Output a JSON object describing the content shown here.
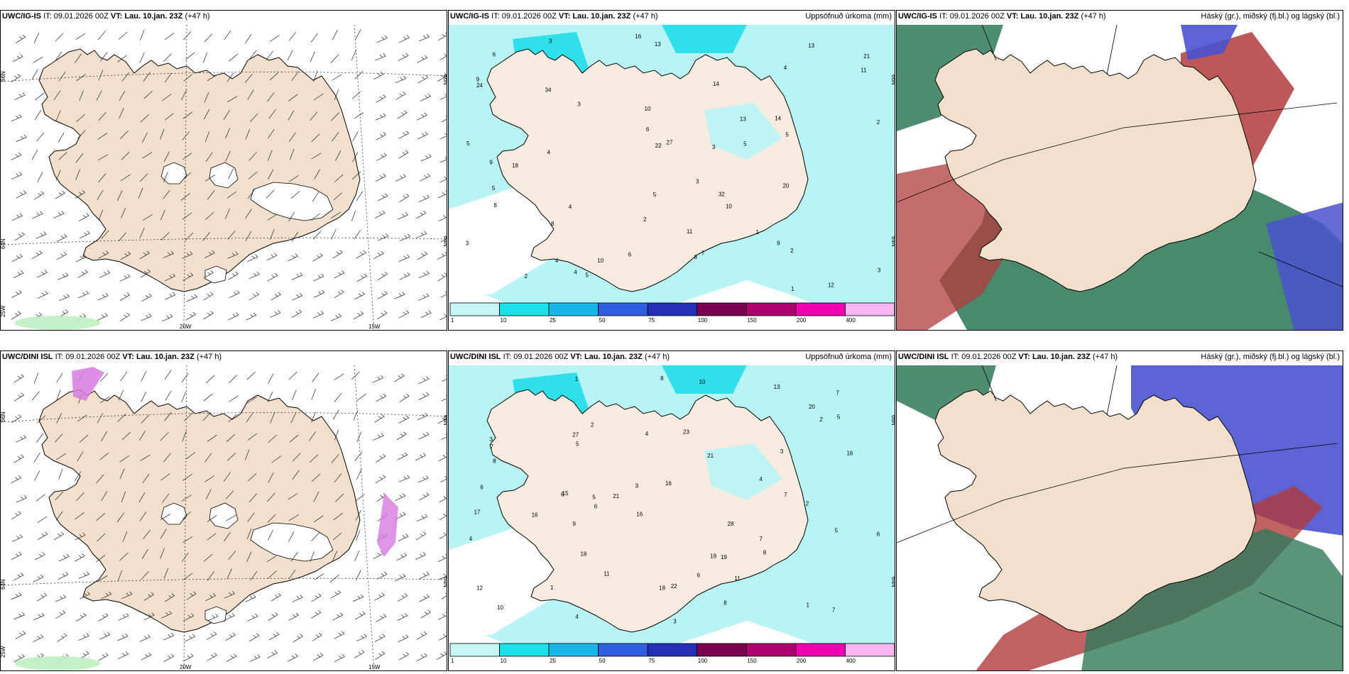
{
  "panels": [
    {
      "id": "p1",
      "model": "UWC/IG-IS",
      "it_label": "IT:",
      "it_value": "09.01.2026 00Z",
      "vt_label": "VT:",
      "vt_value": "Lau. 10.jan. 23Z",
      "lead": "(+47 h)",
      "title_right": "",
      "type": "wind",
      "lat_labels": [
        "66N",
        "64N",
        "66N",
        "64N"
      ],
      "lon_labels": [
        "25W",
        "20W",
        "15W"
      ]
    },
    {
      "id": "p2",
      "model": "UWC/IG-IS",
      "it_label": "IT:",
      "it_value": "09.01.2026 00Z",
      "vt_label": "VT:",
      "vt_value": "Lau. 10.jan. 23Z",
      "lead": "(+47 h)",
      "title_right": "Uppsöfnuð úrkoma (mm)",
      "type": "precip",
      "lat_labels": [
        "66N",
        "64N"
      ],
      "precip_labels": [
        "5",
        "13",
        "14",
        "21",
        "9",
        "12",
        "18",
        "14",
        "10",
        "13",
        "27",
        "20",
        "16",
        "24",
        "34",
        "8",
        "7",
        "9",
        "3",
        "2",
        "1",
        "2",
        "11",
        "6",
        "4",
        "22",
        "32",
        "3",
        "5",
        "8",
        "5",
        "1",
        "3",
        "2",
        "4",
        "8",
        "5",
        "6",
        "10",
        "3",
        "11",
        "5",
        "3",
        "2",
        "5",
        "4",
        "4",
        "3",
        "6",
        "4",
        "13",
        "9",
        "10"
      ]
    },
    {
      "id": "p3",
      "model": "UWC/IG-IS",
      "it_label": "IT:",
      "it_value": "09.01.2026 00Z",
      "vt_label": "VT:",
      "vt_value": "Lau. 10.jan. 23Z",
      "lead": "(+47 h)",
      "title_right": "Háský (gr.), miðský (fj.bl.) og lágský (bl.)",
      "type": "clouds"
    },
    {
      "id": "p4",
      "model": "UWC/DINI ISL",
      "it_label": "IT:",
      "it_value": "09.01.2026 00Z",
      "vt_label": "VT:",
      "vt_value": "Lau. 10.jan. 23Z",
      "lead": "(+47 h)",
      "title_right": "",
      "type": "wind",
      "lat_labels": [
        "66N",
        "64N",
        "66N",
        "64N"
      ],
      "lon_labels": [
        "25W",
        "20W",
        "15W"
      ]
    },
    {
      "id": "p5",
      "model": "UWC/DINI ISL",
      "it_label": "IT:",
      "it_value": "09.01.2026 00Z",
      "vt_label": "VT:",
      "vt_value": "Lau. 10.jan. 23Z",
      "lead": "(+47 h)",
      "title_right": "Uppsöfnuð úrkoma (mm)",
      "type": "precip",
      "lat_labels": [
        "66N",
        "64N"
      ],
      "precip_labels": [
        "10",
        "16",
        "11",
        "18",
        "21",
        "28",
        "22",
        "7",
        "8",
        "19",
        "16",
        "15",
        "18",
        "27",
        "23",
        "20",
        "7",
        "16",
        "21",
        "9",
        "13",
        "5",
        "10",
        "11",
        "8",
        "6",
        "12",
        "18",
        "17",
        "16",
        "3",
        "2",
        "3",
        "6",
        "1",
        "7",
        "5",
        "4",
        "3",
        "2",
        "8",
        "7",
        "6",
        "5",
        "4",
        "6",
        "2",
        "3",
        "1",
        "6",
        "4",
        "5",
        "4",
        "7",
        "8",
        "1"
      ]
    },
    {
      "id": "p6",
      "model": "UWC/DINI ISL",
      "it_label": "IT:",
      "it_value": "09.01.2026 00Z",
      "vt_label": "VT:",
      "vt_value": "Lau. 10.jan. 23Z",
      "lead": "(+47 h)",
      "title_right": "Háský (gr.), miðský (fj.bl.) og lágský (bl.)",
      "type": "clouds"
    }
  ],
  "precip_legend": {
    "colors": [
      "#c6f7f7",
      "#19e3e8",
      "#17b7e8",
      "#2f5fe0",
      "#2430b8",
      "#7a0050",
      "#b00070",
      "#f000b0",
      "#f7b6f0"
    ],
    "ticks": [
      "1",
      "10",
      "25",
      "50",
      "75",
      "100",
      "150",
      "200",
      "400"
    ]
  },
  "colors": {
    "land": "#f2e0cc",
    "land_precip": "#f8ebe0",
    "sea": "#ffffff",
    "precip_light": "#b8f4f6",
    "precip_mid": "#2fe0ea",
    "glacier": "#ffffff",
    "high_cloud": "#2e7a5a",
    "mid_cloud": "#b23b3b",
    "low_cloud": "#4a52d0"
  }
}
